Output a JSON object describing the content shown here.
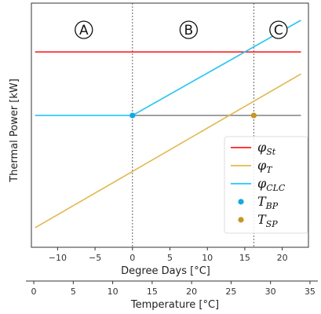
{
  "chart_data": {
    "type": "line",
    "ylabel": "Thermal Power [kW]",
    "xlabel": "Degree Days [°C]",
    "xlim": [
      -13.5,
      23.5
    ],
    "x_ticks": [
      -10,
      -5,
      0,
      5,
      10,
      15,
      20
    ],
    "secondary_x": {
      "label": "Temperature [°C]",
      "ticks": [
        0,
        5,
        10,
        15,
        20,
        25,
        30,
        35
      ],
      "range": [
        -1,
        36
      ]
    },
    "ylim": [
      0,
      1
    ],
    "grid": false,
    "legend_placement": "lower-right",
    "regions": [
      {
        "label": "A",
        "x": -6.5
      },
      {
        "label": "B",
        "x": 7.5
      },
      {
        "label": "C",
        "x": 19.5
      }
    ],
    "vlines": [
      0,
      16.2
    ],
    "series": [
      {
        "name": "St",
        "color": "#ff2020",
        "x": [
          -13,
          22.5
        ],
        "y": [
          0.8,
          0.8
        ]
      },
      {
        "name": "T",
        "color": "#e4b84a",
        "x": [
          -13,
          22.5
        ],
        "y": [
          0.08,
          0.71
        ]
      },
      {
        "name": "CLC",
        "color": "#1ec7ff",
        "x": [
          -13,
          0,
          22.5
        ],
        "y": [
          0.54,
          0.54,
          0.93
        ]
      },
      {
        "name": "baseline",
        "color": "#8c8c8c",
        "x": [
          0,
          22.5
        ],
        "y": [
          0.54,
          0.54
        ]
      }
    ],
    "points": [
      {
        "name": "BP",
        "color": "#11a8e8",
        "x": 0,
        "y": 0.54
      },
      {
        "name": "SP",
        "color": "#c9951e",
        "x": 16.2,
        "y": 0.54
      }
    ],
    "legend": [
      {
        "key": "St",
        "type": "line",
        "color": "#ff2020",
        "sym": "φ",
        "sub": "St"
      },
      {
        "key": "T",
        "type": "line",
        "color": "#e4b84a",
        "sym": "φ",
        "sub": "T"
      },
      {
        "key": "CLC",
        "type": "line",
        "color": "#1ec7ff",
        "sym": "φ",
        "sub": "CLC"
      },
      {
        "key": "BP",
        "type": "point",
        "color": "#11a8e8",
        "sym": "T",
        "sub": "BP"
      },
      {
        "key": "SP",
        "type": "point",
        "color": "#c9951e",
        "sym": "T",
        "sub": "SP"
      }
    ]
  }
}
